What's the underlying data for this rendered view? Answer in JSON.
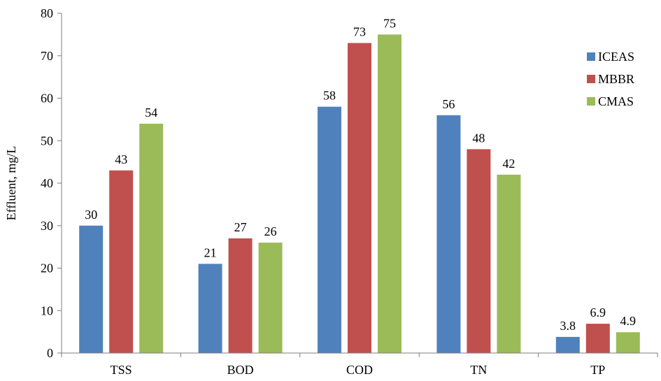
{
  "chart_data": {
    "type": "bar",
    "title": "",
    "xlabel": "",
    "ylabel": "Effluent, mg/L",
    "ylim": [
      0,
      80
    ],
    "yticks": [
      0,
      10,
      20,
      30,
      40,
      50,
      60,
      70,
      80
    ],
    "categories": [
      "TSS",
      "BOD",
      "COD",
      "TN",
      "TP"
    ],
    "series": [
      {
        "name": "ICEAS",
        "color": "#4f81bd",
        "values": [
          30,
          21,
          58,
          56,
          3.8
        ],
        "labels": [
          "30",
          "21",
          "58",
          "56",
          "3.8"
        ]
      },
      {
        "name": "MBBR",
        "color": "#c0504d",
        "values": [
          43,
          27,
          73,
          48,
          6.9
        ],
        "labels": [
          "43",
          "27",
          "73",
          "48",
          "6.9"
        ]
      },
      {
        "name": "CMAS",
        "color": "#9bbb59",
        "values": [
          54,
          26,
          75,
          42,
          4.9
        ],
        "labels": [
          "54",
          "26",
          "75",
          "42",
          "4.9"
        ]
      }
    ],
    "legend": {
      "position": "top-right"
    },
    "grid": false
  }
}
